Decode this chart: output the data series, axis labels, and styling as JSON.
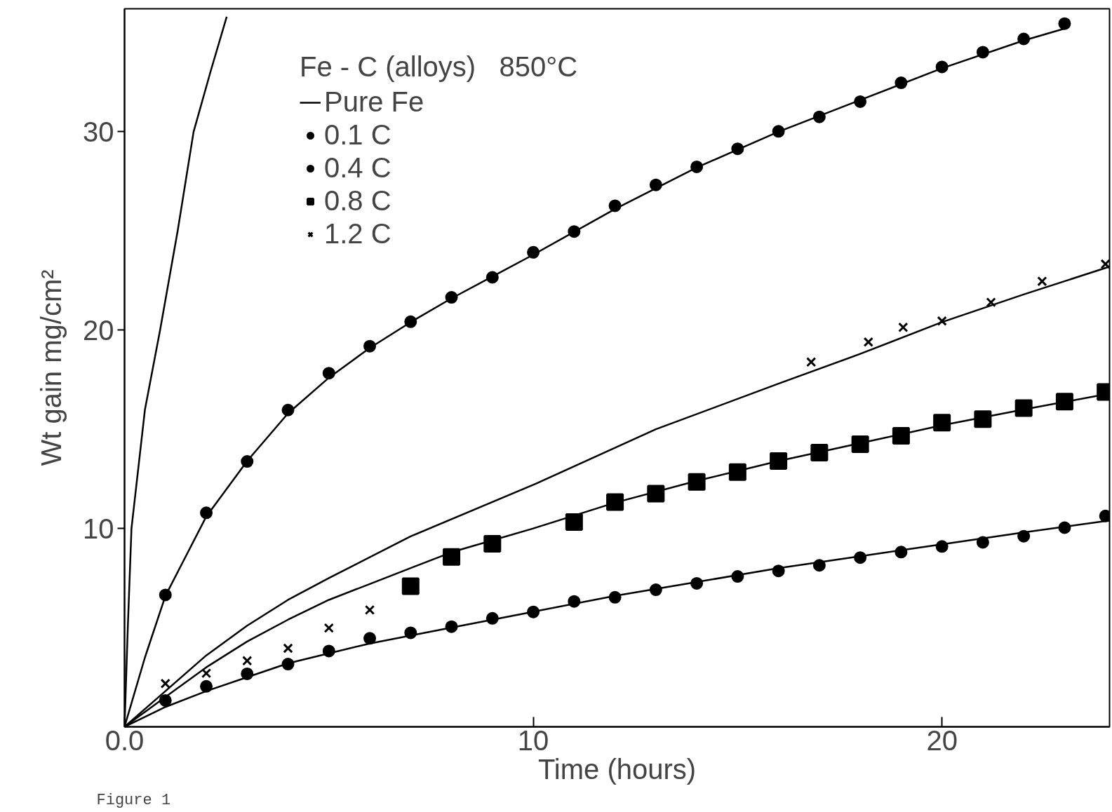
{
  "chart_data": {
    "type": "scatter",
    "xlabel": "Time (hours)",
    "ylabel": "Wt gain mg/cm²",
    "legend_title": "Fe - C (alloys)   850°C",
    "legend": "top",
    "grid": false,
    "xlim": [
      0,
      24.1
    ],
    "ylim": [
      0,
      36.2
    ],
    "xticks": [
      {
        "value": 0,
        "label": "0.0"
      },
      10,
      20
    ],
    "yticks": [
      10,
      20,
      30
    ],
    "annotations": [
      "Figure 1"
    ],
    "series": [
      {
        "name": "Pure Fe",
        "type": "line",
        "color": "#000000",
        "marker": "none",
        "x": [
          0,
          0.08,
          0.17,
          0.5,
          0.87,
          1.3,
          1.69,
          2.1,
          2.5
        ],
        "values": [
          0,
          5,
          10,
          16,
          20,
          25,
          30,
          33,
          35.8
        ]
      },
      {
        "name": "0.1 C",
        "color": "#000000",
        "marker": "circle",
        "x": [
          1,
          2,
          3,
          4,
          5,
          6,
          7,
          8,
          9,
          10,
          11,
          12,
          13,
          14,
          15,
          16,
          17,
          18,
          19,
          20,
          21,
          22,
          23,
          24
        ],
        "values": [
          1.33,
          2.04,
          2.67,
          3.16,
          3.82,
          4.46,
          4.74,
          5.05,
          5.47,
          5.79,
          6.32,
          6.53,
          6.91,
          7.23,
          7.58,
          7.86,
          8.14,
          8.53,
          8.81,
          9.09,
          9.3,
          9.61,
          10.04,
          10.63
        ]
      },
      {
        "name": "0.4 C",
        "color": "#000000",
        "marker": "circle",
        "x": [
          1,
          2,
          3,
          4,
          5,
          6,
          7,
          8,
          9,
          10,
          11,
          12,
          13,
          14,
          15,
          16,
          17,
          18,
          19,
          20,
          21,
          22,
          23
        ],
        "values": [
          6.65,
          10.79,
          13.38,
          15.97,
          17.83,
          19.19,
          20.42,
          21.65,
          22.66,
          23.92,
          24.97,
          26.27,
          27.32,
          28.23,
          29.14,
          30.02,
          30.75,
          31.52,
          32.47,
          33.27,
          34.01,
          34.68,
          35.45
        ]
      },
      {
        "name": "0.8 C",
        "color": "#000000",
        "marker": "square",
        "x": [
          7,
          8,
          9,
          11,
          12,
          13,
          14,
          15,
          16,
          17,
          18,
          19,
          20,
          21,
          22,
          23,
          24
        ],
        "values": [
          7.09,
          8.56,
          9.23,
          10.32,
          11.33,
          11.75,
          12.35,
          12.84,
          13.4,
          13.82,
          14.25,
          14.67,
          15.33,
          15.51,
          16.07,
          16.39,
          16.88
        ]
      },
      {
        "name": "1.2 C",
        "color": "#000000",
        "marker": "cross",
        "x": [
          1,
          2,
          3,
          4,
          5,
          6,
          16.8,
          18.2,
          19.05,
          20,
          21.2,
          22.45,
          24
        ],
        "values": [
          2.18,
          2.7,
          3.33,
          3.96,
          4.98,
          5.89,
          18.39,
          19.4,
          20.14,
          20.46,
          21.4,
          22.46,
          23.33
        ]
      },
      {
        "type": "line",
        "color": "#000000",
        "marker": "none",
        "x": [
          0,
          0.5,
          1,
          2,
          3,
          4,
          5,
          6,
          7,
          8,
          9,
          10,
          12,
          14,
          16,
          18,
          20,
          22,
          23
        ],
        "values": [
          0,
          3.5,
          6.6,
          10.6,
          13.4,
          15.8,
          17.6,
          19.1,
          20.4,
          21.6,
          22.7,
          23.8,
          26.1,
          28.2,
          30,
          31.6,
          33.2,
          34.6,
          35.2
        ]
      },
      {
        "type": "line",
        "color": "#000000",
        "marker": "none",
        "x": [
          0,
          1,
          2,
          3,
          4,
          5,
          7,
          10,
          13,
          16,
          18,
          20,
          22,
          24.1
        ],
        "values": [
          0,
          1.8,
          3.6,
          5.1,
          6.4,
          7.5,
          9.6,
          12.2,
          15,
          17.3,
          18.8,
          20.4,
          21.8,
          23.2
        ]
      },
      {
        "type": "line",
        "color": "#000000",
        "marker": "none",
        "x": [
          0,
          1,
          2,
          3,
          4,
          5,
          6,
          7,
          8,
          10,
          12,
          14,
          16,
          18,
          20,
          22,
          24.1
        ],
        "values": [
          0,
          1.5,
          3,
          4.3,
          5.4,
          6.4,
          7.2,
          8,
          8.8,
          10,
          11.3,
          12.4,
          13.4,
          14.3,
          15.2,
          16,
          16.8
        ]
      },
      {
        "type": "line",
        "color": "#000000",
        "marker": "none",
        "x": [
          0,
          1,
          2,
          3,
          4,
          5,
          6,
          8,
          10,
          12,
          14,
          16,
          18,
          20,
          22,
          24.1
        ],
        "values": [
          0,
          1,
          1.8,
          2.5,
          3.2,
          3.7,
          4.2,
          5,
          5.8,
          6.6,
          7.3,
          8,
          8.6,
          9.2,
          9.8,
          10.4
        ]
      }
    ]
  }
}
